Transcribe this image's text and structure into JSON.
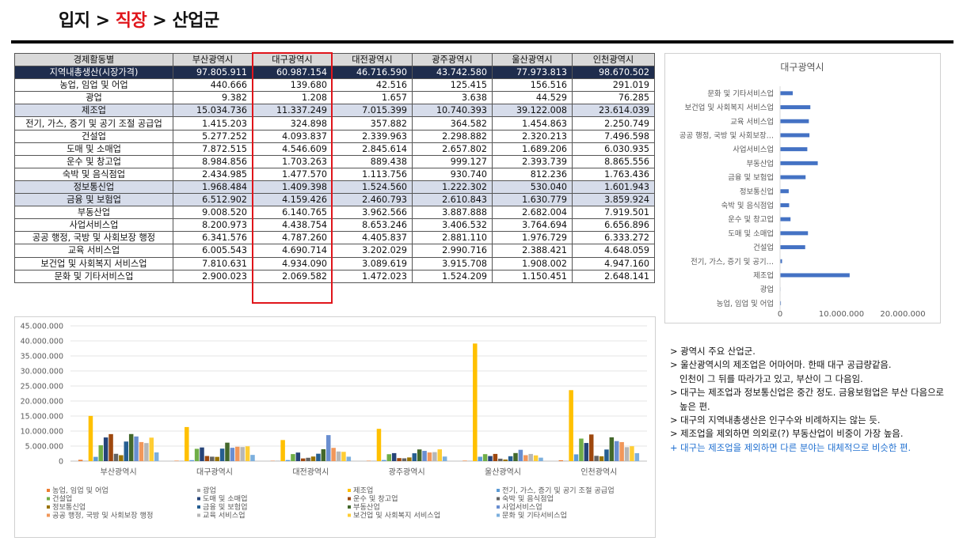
{
  "title": {
    "part1": "입지 >",
    "part2": "직장",
    "part3": "> 산업군"
  },
  "table": {
    "columns": [
      "경제활동별",
      "부산광역시",
      "대구광역시",
      "대전광역시",
      "광주광역시",
      "울산광역시",
      "인천광역시"
    ],
    "rows": [
      {
        "label": "지역내총생산(시장가격)",
        "values": [
          "97.805.911",
          "60.987.154",
          "46.716.590",
          "43.742.580",
          "77.973.813",
          "98.670.502"
        ]
      },
      {
        "label": "농업, 임업 및 어업",
        "values": [
          "440.666",
          "139.680",
          "42.516",
          "125.415",
          "156.516",
          "291.019"
        ]
      },
      {
        "label": "광업",
        "values": [
          "9.382",
          "1.208",
          "1.657",
          "3.638",
          "44.529",
          "76.285"
        ]
      },
      {
        "label": "제조업",
        "values": [
          "15.034.736",
          "11.337.249",
          "7.015.399",
          "10.740.393",
          "39.122.008",
          "23.614.039"
        ]
      },
      {
        "label": "전기, 가스, 증기 및 공기 조절 공급업",
        "values": [
          "1.415.203",
          "324.898",
          "357.882",
          "364.582",
          "1.454.863",
          "2.250.749"
        ]
      },
      {
        "label": "건설업",
        "values": [
          "5.277.252",
          "4.093.837",
          "2.339.963",
          "2.298.882",
          "2.320.213",
          "7.496.598"
        ]
      },
      {
        "label": "도매 및 소매업",
        "values": [
          "7.872.515",
          "4.546.609",
          "2.845.614",
          "2.657.802",
          "1.689.206",
          "6.030.935"
        ]
      },
      {
        "label": "운수 및 창고업",
        "values": [
          "8.984.856",
          "1.703.263",
          "889.438",
          "999.127",
          "2.393.739",
          "8.865.556"
        ]
      },
      {
        "label": "숙박 및 음식점업",
        "values": [
          "2.434.985",
          "1.477.570",
          "1.113.756",
          "930.740",
          "812.236",
          "1.763.436"
        ]
      },
      {
        "label": "정보통신업",
        "values": [
          "1.968.484",
          "1.409.398",
          "1.524.560",
          "1.222.302",
          "530.040",
          "1.601.943"
        ]
      },
      {
        "label": "금융 및 보험업",
        "values": [
          "6.512.902",
          "4.159.426",
          "2.460.793",
          "2.610.843",
          "1.630.779",
          "3.859.924"
        ]
      },
      {
        "label": "부동산업",
        "values": [
          "9.008.520",
          "6.140.765",
          "3.962.566",
          "3.887.888",
          "2.682.004",
          "7.919.501"
        ]
      },
      {
        "label": "사업서비스업",
        "values": [
          "8.200.973",
          "4.438.754",
          "8.653.246",
          "3.406.532",
          "3.764.694",
          "6.656.896"
        ]
      },
      {
        "label": "공공 행정, 국방 및 사회보장 행정",
        "values": [
          "6.341.576",
          "4.787.260",
          "4.405.837",
          "2.881.110",
          "1.976.729",
          "6.333.272"
        ]
      },
      {
        "label": "교육 서비스업",
        "values": [
          "6.005.543",
          "4.690.714",
          "3.202.029",
          "2.990.716",
          "2.388.421",
          "4.648.059"
        ]
      },
      {
        "label": "보건업 및 사회복지 서비스업",
        "values": [
          "7.810.631",
          "4.934.090",
          "3.089.619",
          "3.915.708",
          "1.908.002",
          "4.947.160"
        ]
      },
      {
        "label": "문화 및 기타서비스업",
        "values": [
          "2.900.023",
          "2.069.582",
          "1.472.023",
          "1.524.209",
          "1.150.451",
          "2.648.141"
        ]
      }
    ]
  },
  "colors": {
    "header_bg": "#d9d9d9",
    "grdp_row_bg": "#1f2d4d",
    "shade_row_bg": "#d6dcea",
    "highlight": "#e0151b",
    "note_blue": "#1f6fd0",
    "hbar": "#4472c4"
  },
  "chart_data": [
    {
      "type": "bar",
      "orientation": "horizontal",
      "title": "대구광역시",
      "categories": [
        "문화 및 기타서비스업",
        "보건업 및 사회복지 서비스업",
        "교육 서비스업",
        "공공 행정, 국방 및 사회보장…",
        "사업서비스업",
        "부동산업",
        "금융 및 보험업",
        "정보통신업",
        "숙박 및 음식점업",
        "운수 및 창고업",
        "도매 및 소매업",
        "건설업",
        "전기, 가스, 증기 및 공기…",
        "제조업",
        "광업",
        "농업, 임업 및 어업"
      ],
      "values": [
        2069582,
        4934090,
        4690714,
        4787260,
        4438754,
        6140765,
        4159426,
        1409398,
        1477570,
        1703263,
        4546609,
        4093837,
        324898,
        11337249,
        1208,
        139680
      ],
      "xlim": [
        0,
        20000000
      ],
      "xticks": [
        "0",
        "10.000.000",
        "20.000.000"
      ],
      "grid": false
    },
    {
      "type": "bar",
      "categories": [
        "부산광역시",
        "대구광역시",
        "대전광역시",
        "광주광역시",
        "울산광역시",
        "인천광역시"
      ],
      "series": [
        {
          "name": "농업, 임업 및 어업",
          "color": "#ed7d31",
          "values": [
            440666,
            139680,
            42516,
            125415,
            156516,
            291019
          ]
        },
        {
          "name": "광업",
          "color": "#a5a5a5",
          "values": [
            9382,
            1208,
            1657,
            3638,
            44529,
            76285
          ]
        },
        {
          "name": "제조업",
          "color": "#ffc000",
          "values": [
            15034736,
            11337249,
            7015399,
            10740393,
            39122008,
            23614039
          ]
        },
        {
          "name": "전기, 가스, 증기 및 공기 조절 공급업",
          "color": "#5b9bd5",
          "values": [
            1415203,
            324898,
            357882,
            364582,
            1454863,
            2250749
          ]
        },
        {
          "name": "건설업",
          "color": "#70ad47",
          "values": [
            5277252,
            4093837,
            2339963,
            2298882,
            2320213,
            7496598
          ]
        },
        {
          "name": "도매 및 소매업",
          "color": "#264478",
          "values": [
            7872515,
            4546609,
            2845614,
            2657802,
            1689206,
            6030935
          ]
        },
        {
          "name": "운수 및 창고업",
          "color": "#9e480e",
          "values": [
            8984856,
            1703263,
            889438,
            999127,
            2393739,
            8865556
          ]
        },
        {
          "name": "숙박 및 음식점업",
          "color": "#636363",
          "values": [
            2434985,
            1477570,
            1113756,
            930740,
            812236,
            1763436
          ]
        },
        {
          "name": "정보통신업",
          "color": "#997300",
          "values": [
            1968484,
            1409398,
            1524560,
            1222302,
            530040,
            1601943
          ]
        },
        {
          "name": "금융 및 보험업",
          "color": "#255e91",
          "values": [
            6512902,
            4159426,
            2460793,
            2610843,
            1630779,
            3859924
          ]
        },
        {
          "name": "부동산업",
          "color": "#43682b",
          "values": [
            9008520,
            6140765,
            3962566,
            3887888,
            2682004,
            7919501
          ]
        },
        {
          "name": "사업서비스업",
          "color": "#698ed0",
          "values": [
            8200973,
            4438754,
            8653246,
            3406532,
            3764694,
            6656896
          ]
        },
        {
          "name": "공공 행정, 국방 및 사회보장 행정",
          "color": "#f1975a",
          "values": [
            6341576,
            4787260,
            4405837,
            2881110,
            1976729,
            6333272
          ]
        },
        {
          "name": "교육 서비스업",
          "color": "#b7b7b7",
          "values": [
            6005543,
            4690714,
            3202029,
            2990716,
            2388421,
            4648059
          ]
        },
        {
          "name": "보건업 및 사회복지 서비스업",
          "color": "#ffcd33",
          "values": [
            7810631,
            4934090,
            3089619,
            3915708,
            1908002,
            4947160
          ]
        },
        {
          "name": "문화 및 기타서비스업",
          "color": "#7cafdd",
          "values": [
            2900023,
            2069582,
            1472023,
            1524209,
            1150451,
            2648141
          ]
        }
      ],
      "ylim": [
        0,
        45000000
      ],
      "yticks": [
        "0",
        "5.000.000",
        "10.000.000",
        "15.000.000",
        "20.000.000",
        "25.000.000",
        "30.000.000",
        "35.000.000",
        "40.000.000",
        "45.000.000"
      ],
      "grid": true,
      "legend": "bottom"
    }
  ],
  "notes": [
    {
      "text": "> 광역시 주요 산업군.",
      "style": "normal"
    },
    {
      "text": "> 울산광역시의 제조업은 어마어마. 한때 대구 공급량같음.",
      "style": "normal"
    },
    {
      "text": "인천이 그 뒤를 따라가고 있고, 부산이 그 다음임.",
      "style": "indent"
    },
    {
      "text": "> 대구는 제조업과 정보통신업은 중간 정도. 금융보험업은 부산 다음으로",
      "style": "normal"
    },
    {
      "text": "높은 편.",
      "style": "indent"
    },
    {
      "text": "> 대구의 지역내총생산은 인구수와 비례하지는 않는 듯.",
      "style": "normal"
    },
    {
      "text": "> 제조업을 제외하면 의외로(?) 부동산업이 비중이 가장 높음.",
      "style": "normal"
    },
    {
      "text": "+ 대구는 제조업을 제외하면 다른 분야는 대체적으로 비슷한 편.",
      "style": "blue"
    }
  ]
}
